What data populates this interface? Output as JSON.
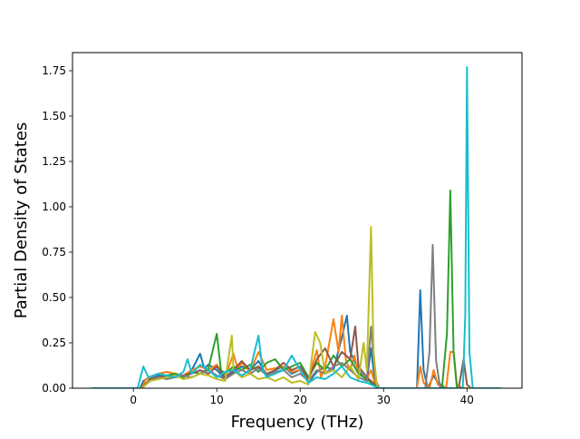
{
  "chart_data": {
    "type": "line",
    "title": "",
    "xlabel": "Frequency (THz)",
    "ylabel": "Partial Density of States",
    "xlim": [
      -7.3,
      46.6
    ],
    "ylim": [
      0,
      1.85
    ],
    "xticks": [
      0,
      10,
      20,
      30,
      40
    ],
    "xtick_labels": [
      "0",
      "10",
      "20",
      "30",
      "40"
    ],
    "yticks": [
      0.0,
      0.25,
      0.5,
      0.75,
      1.0,
      1.25,
      1.5,
      1.75
    ],
    "ytick_labels": [
      "0.00",
      "0.25",
      "0.50",
      "0.75",
      "1.00",
      "1.25",
      "1.50",
      "1.75"
    ],
    "grid": false,
    "legend": "none",
    "series": [
      {
        "color": "#1f77b4",
        "points": [
          [
            -5,
            0
          ],
          [
            0.8,
            0
          ],
          [
            1.2,
            0.04
          ],
          [
            2,
            0.06
          ],
          [
            3,
            0.07
          ],
          [
            4,
            0.06
          ],
          [
            5,
            0.08
          ],
          [
            6,
            0.07
          ],
          [
            7,
            0.1
          ],
          [
            8,
            0.19
          ],
          [
            8.5,
            0.11
          ],
          [
            9,
            0.13
          ],
          [
            10,
            0.1
          ],
          [
            11,
            0.05
          ],
          [
            12,
            0.09
          ],
          [
            13,
            0.12
          ],
          [
            14,
            0.1
          ],
          [
            15,
            0.15
          ],
          [
            16,
            0.07
          ],
          [
            17,
            0.1
          ],
          [
            18,
            0.12
          ],
          [
            19,
            0.08
          ],
          [
            20,
            0.1
          ],
          [
            21,
            0.03
          ],
          [
            22,
            0.09
          ],
          [
            23,
            0.12
          ],
          [
            24,
            0.1
          ],
          [
            25,
            0.28
          ],
          [
            25.6,
            0.4
          ],
          [
            26,
            0.2
          ],
          [
            27,
            0.1
          ],
          [
            28,
            0.04
          ],
          [
            28.5,
            0.22
          ],
          [
            29,
            0.02
          ],
          [
            29.5,
            0
          ],
          [
            34,
            0
          ],
          [
            34.4,
            0.54
          ],
          [
            34.8,
            0.1
          ],
          [
            35.3,
            0
          ],
          [
            36,
            0.07
          ],
          [
            36.5,
            0.03
          ],
          [
            37.5,
            0
          ],
          [
            40,
            0
          ],
          [
            44,
            0
          ]
        ]
      },
      {
        "color": "#ff7f0e",
        "points": [
          [
            -5,
            0
          ],
          [
            1,
            0
          ],
          [
            1.5,
            0.05
          ],
          [
            2.5,
            0.07
          ],
          [
            3,
            0.08
          ],
          [
            4,
            0.09
          ],
          [
            5,
            0.08
          ],
          [
            6,
            0.07
          ],
          [
            7,
            0.1
          ],
          [
            8,
            0.12
          ],
          [
            9,
            0.1
          ],
          [
            10,
            0.13
          ],
          [
            11,
            0.06
          ],
          [
            12,
            0.19
          ],
          [
            12.5,
            0.11
          ],
          [
            13,
            0.14
          ],
          [
            14,
            0.09
          ],
          [
            15,
            0.2
          ],
          [
            16,
            0.1
          ],
          [
            17,
            0.11
          ],
          [
            18,
            0.12
          ],
          [
            19,
            0.09
          ],
          [
            20,
            0.1
          ],
          [
            21,
            0.05
          ],
          [
            22,
            0.21
          ],
          [
            22.5,
            0.06
          ],
          [
            23,
            0.12
          ],
          [
            24,
            0.38
          ],
          [
            24.6,
            0.2
          ],
          [
            25,
            0.4
          ],
          [
            25.5,
            0.15
          ],
          [
            26,
            0.1
          ],
          [
            26.5,
            0.18
          ],
          [
            27,
            0.08
          ],
          [
            28,
            0.05
          ],
          [
            28.5,
            0.1
          ],
          [
            29,
            0.02
          ],
          [
            29.5,
            0
          ],
          [
            34,
            0
          ],
          [
            34.4,
            0.12
          ],
          [
            34.8,
            0.03
          ],
          [
            35.5,
            0
          ],
          [
            36,
            0.1
          ],
          [
            36.5,
            0.02
          ],
          [
            37.5,
            0
          ],
          [
            38,
            0.2
          ],
          [
            38.4,
            0.2
          ],
          [
            38.8,
            0.02
          ],
          [
            39.5,
            0
          ],
          [
            44,
            0
          ]
        ]
      },
      {
        "color": "#2ca02c",
        "points": [
          [
            -5,
            0
          ],
          [
            1,
            0
          ],
          [
            2,
            0.05
          ],
          [
            3,
            0.06
          ],
          [
            4,
            0.07
          ],
          [
            5,
            0.08
          ],
          [
            6,
            0.06
          ],
          [
            7,
            0.09
          ],
          [
            8,
            0.08
          ],
          [
            9,
            0.11
          ],
          [
            10,
            0.3
          ],
          [
            10.5,
            0.1
          ],
          [
            11,
            0.08
          ],
          [
            12,
            0.12
          ],
          [
            13,
            0.1
          ],
          [
            14,
            0.13
          ],
          [
            15,
            0.09
          ],
          [
            16,
            0.14
          ],
          [
            17,
            0.16
          ],
          [
            18,
            0.1
          ],
          [
            19,
            0.12
          ],
          [
            20,
            0.14
          ],
          [
            21,
            0.06
          ],
          [
            22,
            0.14
          ],
          [
            23,
            0.1
          ],
          [
            24,
            0.18
          ],
          [
            25,
            0.12
          ],
          [
            26,
            0.16
          ],
          [
            27,
            0.08
          ],
          [
            28,
            0.05
          ],
          [
            29,
            0.01
          ],
          [
            29.5,
            0
          ],
          [
            37,
            0
          ],
          [
            37.6,
            0.3
          ],
          [
            38,
            1.09
          ],
          [
            38.4,
            0.2
          ],
          [
            38.8,
            0
          ],
          [
            44,
            0
          ]
        ]
      },
      {
        "color": "#8c564b",
        "points": [
          [
            -5,
            0
          ],
          [
            1,
            0
          ],
          [
            2,
            0.05
          ],
          [
            3,
            0.06
          ],
          [
            4,
            0.07
          ],
          [
            5,
            0.06
          ],
          [
            6,
            0.07
          ],
          [
            7,
            0.08
          ],
          [
            8,
            0.1
          ],
          [
            9,
            0.08
          ],
          [
            10,
            0.12
          ],
          [
            11,
            0.06
          ],
          [
            12,
            0.1
          ],
          [
            13,
            0.15
          ],
          [
            14,
            0.1
          ],
          [
            15,
            0.12
          ],
          [
            16,
            0.08
          ],
          [
            17,
            0.1
          ],
          [
            18,
            0.14
          ],
          [
            19,
            0.1
          ],
          [
            20,
            0.12
          ],
          [
            21,
            0.05
          ],
          [
            22,
            0.16
          ],
          [
            23,
            0.22
          ],
          [
            24,
            0.12
          ],
          [
            25,
            0.2
          ],
          [
            26,
            0.16
          ],
          [
            26.6,
            0.34
          ],
          [
            27,
            0.12
          ],
          [
            28,
            0.06
          ],
          [
            29,
            0.02
          ],
          [
            29.5,
            0
          ],
          [
            39,
            0
          ],
          [
            39.6,
            0.16
          ],
          [
            40,
            0.02
          ],
          [
            40.5,
            0
          ],
          [
            44,
            0
          ]
        ]
      },
      {
        "color": "#7f7f7f",
        "points": [
          [
            -5,
            0
          ],
          [
            1,
            0
          ],
          [
            2,
            0.04
          ],
          [
            3,
            0.06
          ],
          [
            4,
            0.05
          ],
          [
            5,
            0.06
          ],
          [
            6,
            0.07
          ],
          [
            7,
            0.06
          ],
          [
            8,
            0.08
          ],
          [
            9,
            0.1
          ],
          [
            10,
            0.07
          ],
          [
            11,
            0.05
          ],
          [
            12,
            0.08
          ],
          [
            13,
            0.1
          ],
          [
            14,
            0.08
          ],
          [
            15,
            0.11
          ],
          [
            16,
            0.07
          ],
          [
            17,
            0.09
          ],
          [
            18,
            0.1
          ],
          [
            19,
            0.06
          ],
          [
            20,
            0.08
          ],
          [
            21,
            0.04
          ],
          [
            22,
            0.1
          ],
          [
            23,
            0.08
          ],
          [
            24,
            0.12
          ],
          [
            25,
            0.14
          ],
          [
            26,
            0.1
          ],
          [
            27,
            0.06
          ],
          [
            28,
            0.04
          ],
          [
            28.5,
            0.34
          ],
          [
            29,
            0.05
          ],
          [
            29.5,
            0
          ],
          [
            35,
            0
          ],
          [
            35.5,
            0.2
          ],
          [
            35.9,
            0.79
          ],
          [
            36.3,
            0.15
          ],
          [
            36.8,
            0
          ],
          [
            44,
            0
          ]
        ]
      },
      {
        "color": "#bcbd22",
        "points": [
          [
            -5,
            0
          ],
          [
            1,
            0
          ],
          [
            2,
            0.04
          ],
          [
            3,
            0.05
          ],
          [
            4,
            0.06
          ],
          [
            5,
            0.07
          ],
          [
            6,
            0.05
          ],
          [
            7,
            0.06
          ],
          [
            8,
            0.08
          ],
          [
            9,
            0.07
          ],
          [
            10,
            0.05
          ],
          [
            11,
            0.04
          ],
          [
            11.8,
            0.29
          ],
          [
            12,
            0.1
          ],
          [
            13,
            0.06
          ],
          [
            14,
            0.08
          ],
          [
            15,
            0.05
          ],
          [
            16,
            0.06
          ],
          [
            17,
            0.04
          ],
          [
            18,
            0.06
          ],
          [
            19,
            0.03
          ],
          [
            20,
            0.04
          ],
          [
            21,
            0.02
          ],
          [
            21.8,
            0.31
          ],
          [
            22.4,
            0.25
          ],
          [
            23,
            0.08
          ],
          [
            24,
            0.1
          ],
          [
            25,
            0.06
          ],
          [
            26,
            0.12
          ],
          [
            27,
            0.05
          ],
          [
            27.6,
            0.25
          ],
          [
            28,
            0.1
          ],
          [
            28.5,
            0.89
          ],
          [
            28.8,
            0.2
          ],
          [
            29.2,
            0.01
          ],
          [
            29.6,
            0
          ],
          [
            44,
            0
          ]
        ]
      },
      {
        "color": "#17becf",
        "points": [
          [
            -5,
            0
          ],
          [
            0.5,
            0
          ],
          [
            1.2,
            0.12
          ],
          [
            1.8,
            0.06
          ],
          [
            3,
            0.08
          ],
          [
            4,
            0.07
          ],
          [
            5,
            0.06
          ],
          [
            6,
            0.09
          ],
          [
            6.5,
            0.16
          ],
          [
            7,
            0.08
          ],
          [
            8,
            0.13
          ],
          [
            9,
            0.1
          ],
          [
            10,
            0.06
          ],
          [
            11,
            0.09
          ],
          [
            12,
            0.1
          ],
          [
            13,
            0.07
          ],
          [
            14,
            0.1
          ],
          [
            15,
            0.29
          ],
          [
            15.5,
            0.1
          ],
          [
            16,
            0.06
          ],
          [
            17,
            0.08
          ],
          [
            18,
            0.1
          ],
          [
            19,
            0.18
          ],
          [
            20,
            0.1
          ],
          [
            21,
            0.03
          ],
          [
            22,
            0.06
          ],
          [
            23,
            0.05
          ],
          [
            24,
            0.08
          ],
          [
            25,
            0.12
          ],
          [
            26,
            0.06
          ],
          [
            27,
            0.04
          ],
          [
            28,
            0.03
          ],
          [
            29,
            0.01
          ],
          [
            29.5,
            0
          ],
          [
            39.5,
            0
          ],
          [
            39.8,
            0.4
          ],
          [
            40,
            1.77
          ],
          [
            40.3,
            0.2
          ],
          [
            40.7,
            0
          ],
          [
            44,
            0
          ]
        ]
      }
    ]
  }
}
